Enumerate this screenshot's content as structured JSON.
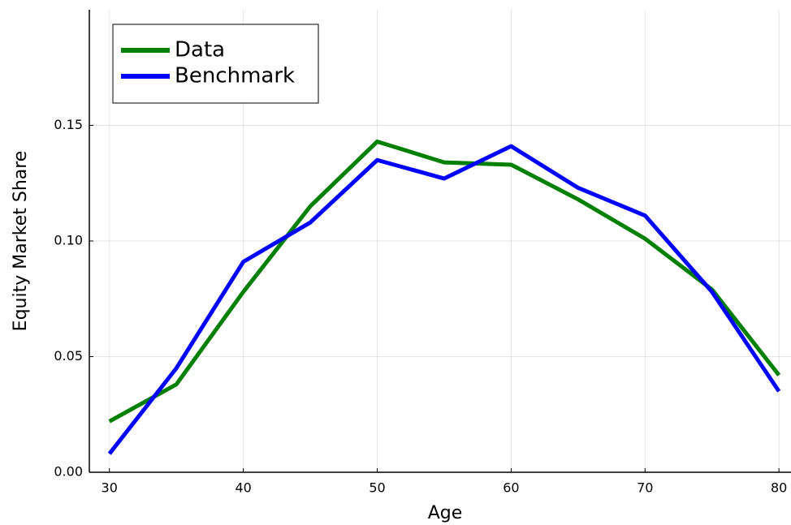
{
  "chart_data": {
    "type": "line",
    "x": [
      30,
      35,
      40,
      45,
      50,
      55,
      60,
      65,
      70,
      75,
      80
    ],
    "series": [
      {
        "name": "Data",
        "color": "#008000",
        "values": [
          0.022,
          0.038,
          0.078,
          0.115,
          0.143,
          0.134,
          0.133,
          0.118,
          0.101,
          0.079,
          0.042
        ]
      },
      {
        "name": "Benchmark",
        "color": "#0000ff",
        "values": [
          0.008,
          0.045,
          0.091,
          0.108,
          0.135,
          0.127,
          0.141,
          0.123,
          0.111,
          0.078,
          0.035
        ]
      }
    ],
    "xlabel": "Age",
    "ylabel": "Equity Market Share",
    "xlim": [
      28.5,
      80.9
    ],
    "ylim": [
      0,
      0.2
    ],
    "xticks": [
      30,
      40,
      50,
      60,
      70,
      80
    ],
    "yticks": [
      {
        "value": 0,
        "label": "0.00"
      },
      0.05,
      {
        "value": 0.1,
        "label": "0.10"
      },
      0.15
    ],
    "grid": true,
    "legend": "upper-left"
  }
}
